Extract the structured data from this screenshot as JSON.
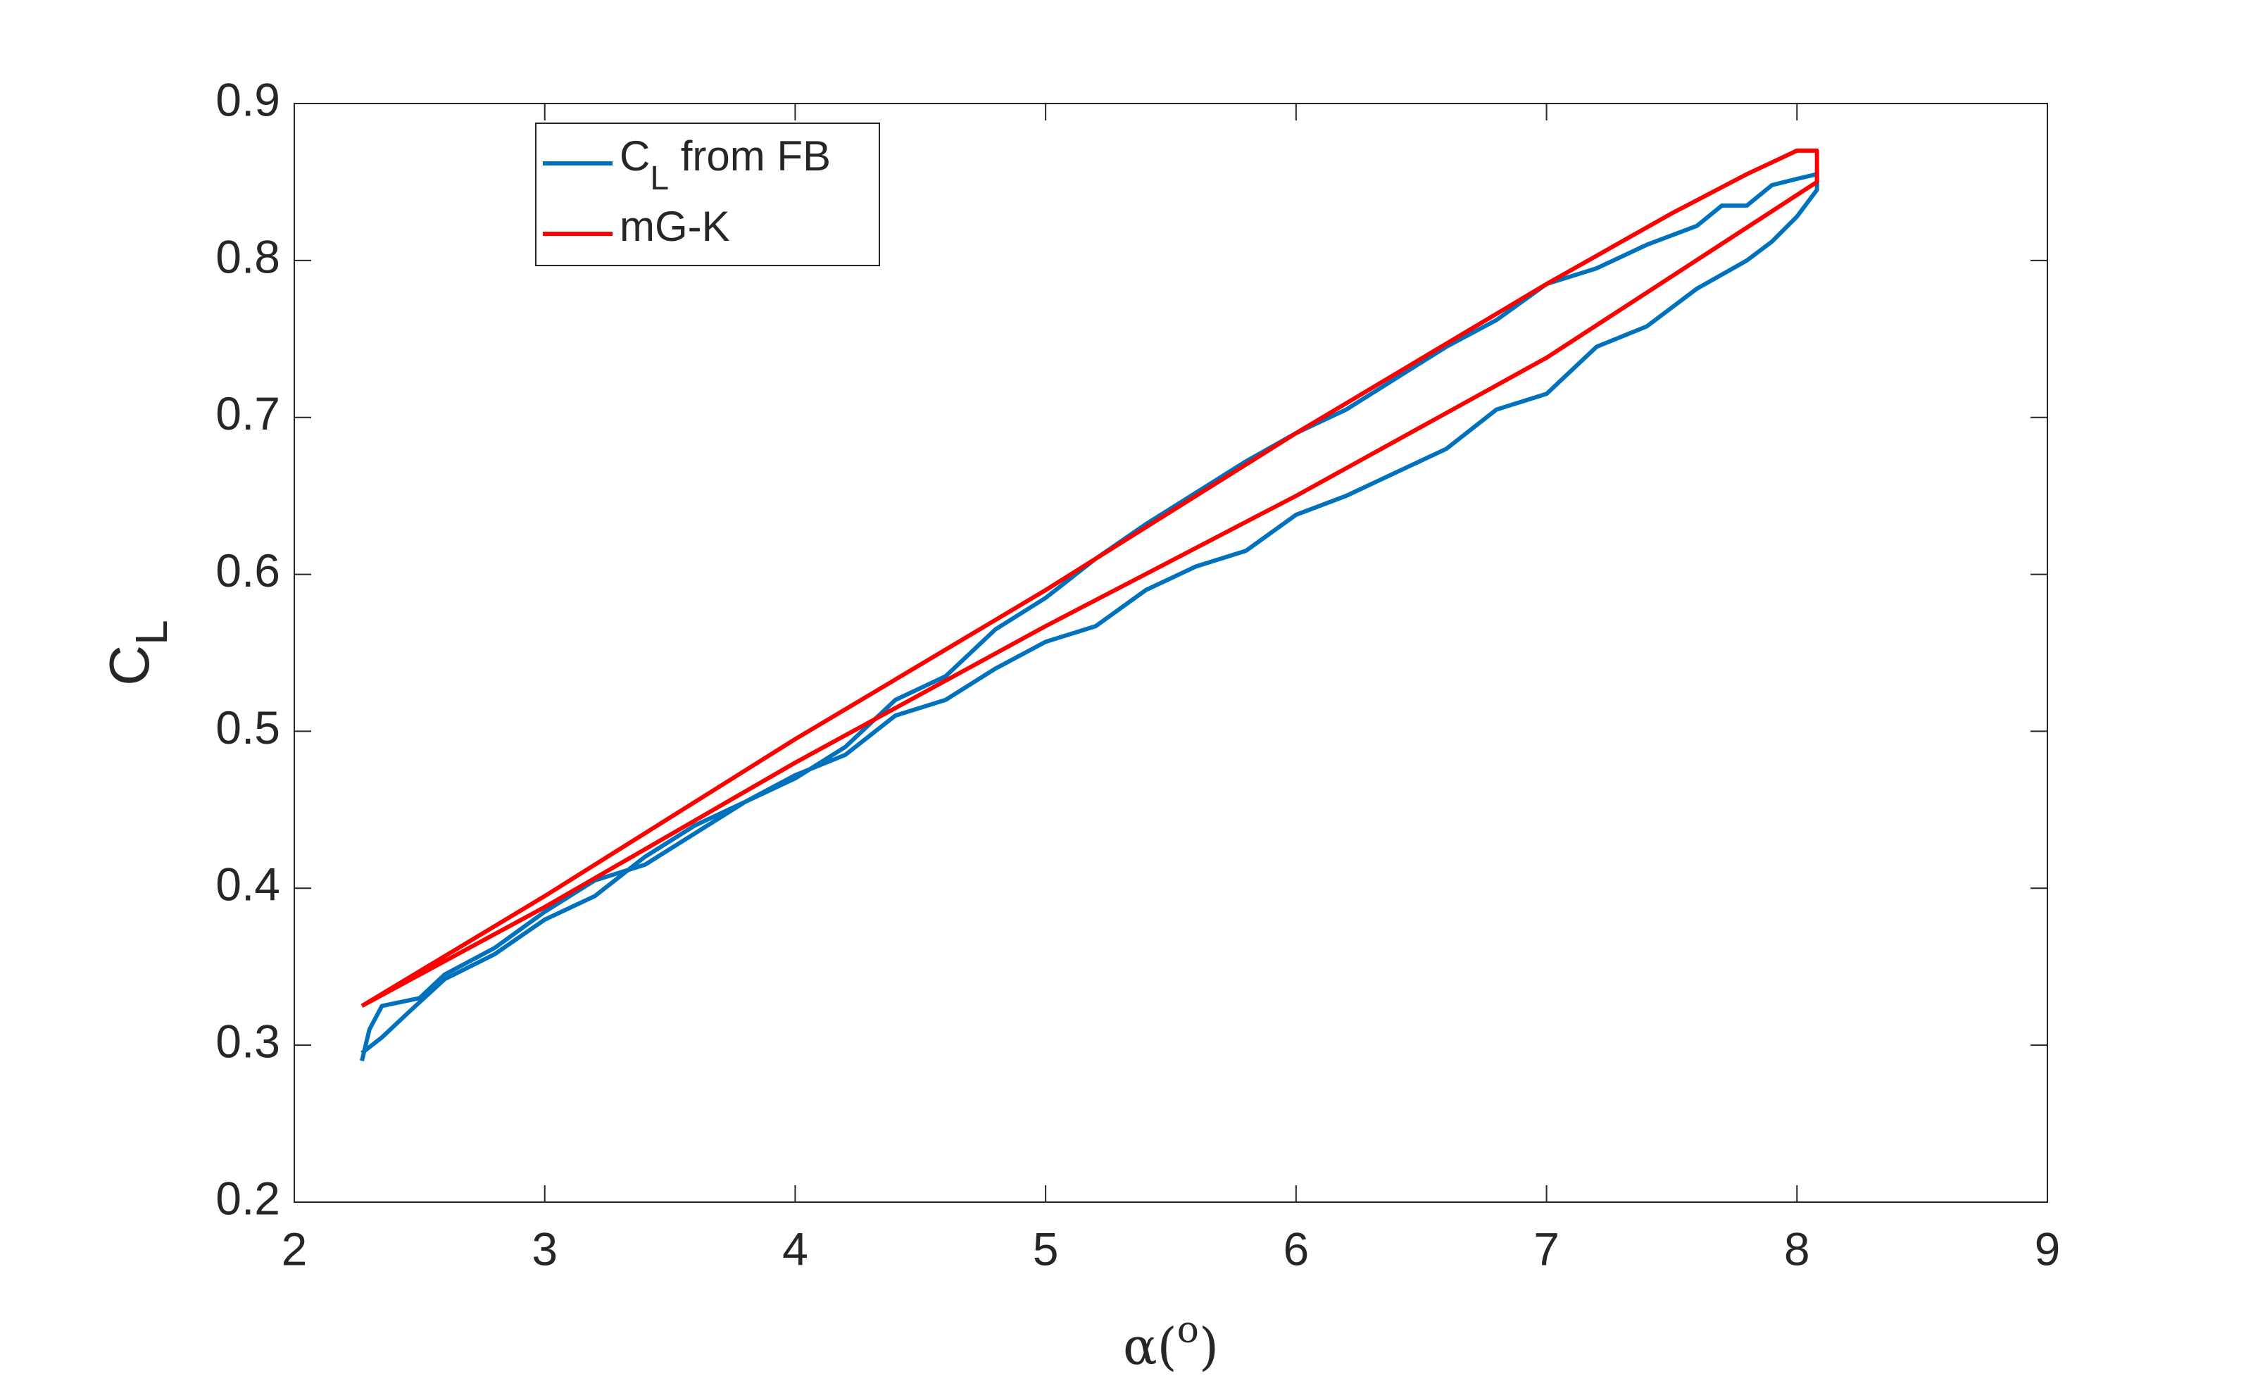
{
  "chart_data": {
    "type": "line",
    "xlabel": "α(o)",
    "ylabel": "CL",
    "xlim": [
      2,
      9
    ],
    "ylim": [
      0.2,
      0.9
    ],
    "xticks": [
      2,
      3,
      4,
      5,
      6,
      7,
      8,
      9
    ],
    "yticks": [
      0.2,
      0.3,
      0.4,
      0.5,
      0.6,
      0.7,
      0.8,
      0.9
    ],
    "series": [
      {
        "name": "CL from FB",
        "color": "#0072bd",
        "x": [
          2.27,
          2.3,
          2.35,
          2.5,
          2.6,
          2.8,
          3.0,
          3.2,
          3.4,
          3.6,
          3.8,
          4.0,
          4.2,
          4.4,
          4.6,
          4.8,
          5.0,
          5.2,
          5.4,
          5.6,
          5.8,
          6.0,
          6.2,
          6.4,
          6.6,
          6.8,
          7.0,
          7.2,
          7.4,
          7.6,
          7.7,
          7.8,
          7.9,
          8.0,
          8.08,
          8.08,
          8.0,
          7.9,
          7.8,
          7.6,
          7.4,
          7.2,
          7.0,
          6.8,
          6.6,
          6.4,
          6.2,
          6.0,
          5.8,
          5.6,
          5.4,
          5.2,
          5.0,
          4.8,
          4.6,
          4.4,
          4.2,
          4.0,
          3.8,
          3.6,
          3.4,
          3.2,
          3.0,
          2.8,
          2.6,
          2.45,
          2.35,
          2.27
        ],
        "values": [
          0.29,
          0.31,
          0.325,
          0.33,
          0.345,
          0.362,
          0.385,
          0.405,
          0.415,
          0.435,
          0.455,
          0.47,
          0.49,
          0.52,
          0.535,
          0.565,
          0.585,
          0.61,
          0.632,
          0.652,
          0.672,
          0.69,
          0.705,
          0.725,
          0.745,
          0.762,
          0.785,
          0.795,
          0.81,
          0.822,
          0.835,
          0.835,
          0.848,
          0.852,
          0.855,
          0.845,
          0.828,
          0.812,
          0.8,
          0.782,
          0.758,
          0.745,
          0.715,
          0.705,
          0.68,
          0.665,
          0.65,
          0.638,
          0.615,
          0.605,
          0.59,
          0.567,
          0.557,
          0.54,
          0.52,
          0.51,
          0.485,
          0.472,
          0.455,
          0.44,
          0.42,
          0.395,
          0.38,
          0.358,
          0.342,
          0.32,
          0.305,
          0.295
        ]
      },
      {
        "name": "mG-K",
        "color": "#ff0000",
        "x": [
          2.27,
          3.0,
          4.0,
          5.0,
          6.0,
          7.0,
          7.5,
          7.8,
          8.0,
          8.08,
          8.08,
          7.0,
          6.0,
          5.0,
          4.0,
          3.0,
          2.27
        ],
        "values": [
          0.325,
          0.395,
          0.495,
          0.59,
          0.69,
          0.785,
          0.83,
          0.855,
          0.87,
          0.87,
          0.85,
          0.738,
          0.65,
          0.567,
          0.48,
          0.388,
          0.325
        ]
      }
    ]
  }
}
